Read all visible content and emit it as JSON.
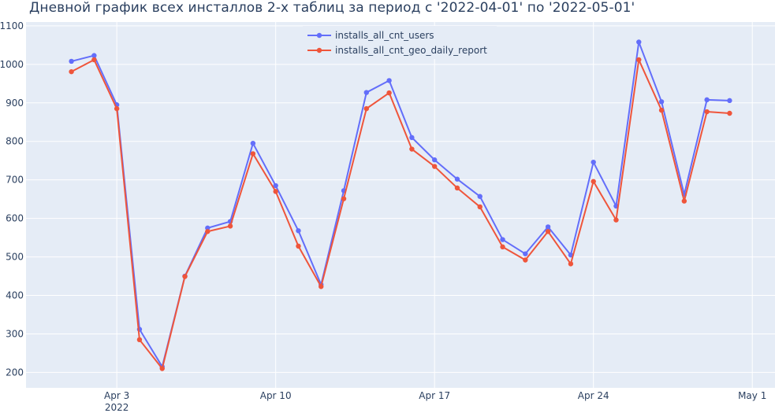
{
  "chart_data": {
    "type": "line",
    "title": "Дневной график всех инсталлов 2-х таблиц за период с '2022-04-01' по '2022-05-01'",
    "xlabel": "",
    "ylabel": "",
    "xlim": [
      "2022-03-30",
      "2022-05-02"
    ],
    "ylim": [
      160,
      1110
    ],
    "grid": true,
    "legend": "top-center",
    "x_ticks": [
      {
        "value": "2022-04-03",
        "label": "Apr 3",
        "sublabel": "2022"
      },
      {
        "value": "2022-04-10",
        "label": "Apr 10"
      },
      {
        "value": "2022-04-17",
        "label": "Apr 17"
      },
      {
        "value": "2022-04-24",
        "label": "Apr 24"
      },
      {
        "value": "2022-05-01",
        "label": "May 1"
      }
    ],
    "y_ticks": [
      200,
      300,
      400,
      500,
      600,
      700,
      800,
      900,
      1000,
      1100
    ],
    "x": [
      "2022-04-01",
      "2022-04-02",
      "2022-04-03",
      "2022-04-04",
      "2022-04-05",
      "2022-04-06",
      "2022-04-07",
      "2022-04-08",
      "2022-04-09",
      "2022-04-10",
      "2022-04-11",
      "2022-04-12",
      "2022-04-13",
      "2022-04-14",
      "2022-04-15",
      "2022-04-16",
      "2022-04-17",
      "2022-04-18",
      "2022-04-19",
      "2022-04-20",
      "2022-04-21",
      "2022-04-22",
      "2022-04-23",
      "2022-04-24",
      "2022-04-25",
      "2022-04-26",
      "2022-04-27",
      "2022-04-28",
      "2022-04-29",
      "2022-04-30"
    ],
    "series": [
      {
        "name": "installs_all_cnt_users",
        "color": "#636efa",
        "values": [
          1008,
          1023,
          895,
          312,
          215,
          450,
          575,
          592,
          795,
          685,
          568,
          428,
          672,
          927,
          958,
          810,
          752,
          702,
          657,
          545,
          508,
          578,
          505,
          746,
          632,
          1058,
          903,
          662,
          908,
          906
        ]
      },
      {
        "name": "installs_all_cnt_geo_daily_report",
        "color": "#ef553b",
        "values": [
          981,
          1012,
          885,
          285,
          210,
          449,
          566,
          580,
          768,
          670,
          528,
          423,
          651,
          885,
          926,
          780,
          735,
          679,
          630,
          526,
          492,
          566,
          482,
          696,
          596,
          1012,
          881,
          645,
          877,
          873
        ]
      }
    ]
  }
}
